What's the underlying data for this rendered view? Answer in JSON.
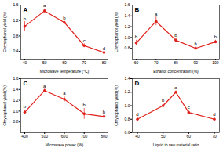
{
  "chart_data": [
    {
      "type": "line",
      "title": "A",
      "xlabel": "Microwave temperature (°C)",
      "ylabel": "Chrysophanol yield (%)",
      "x": [
        40,
        50,
        60,
        70,
        80
      ],
      "values": [
        1.05,
        1.45,
        1.15,
        0.55,
        0.37
      ],
      "errors": [
        0.12,
        0.05,
        0.03,
        0.05,
        0.03
      ],
      "annotations": [
        "b",
        "a",
        "b",
        "c",
        "d"
      ],
      "xlim": [
        38,
        82
      ],
      "xticks": [
        40,
        50,
        60,
        70,
        80
      ],
      "ylim": [
        0.2,
        1.6
      ],
      "yticks": [
        0.4,
        0.8,
        1.2,
        1.6
      ],
      "color": "#e0201b",
      "marker": "circle"
    },
    {
      "type": "line",
      "title": "B",
      "xlabel": "Ethanol concentration (%)",
      "ylabel": "Chrysophanol yield (%)",
      "x": [
        60,
        70,
        80,
        90,
        100
      ],
      "values": [
        0.9,
        1.3,
        0.95,
        0.8,
        0.92
      ],
      "errors": [
        0.05,
        0.08,
        0.04,
        0.03,
        0.03
      ],
      "annotations": [
        "b",
        "a",
        "b",
        "b",
        "b"
      ],
      "xlim": [
        58,
        102
      ],
      "xticks": [
        60,
        70,
        80,
        90,
        100
      ],
      "ylim": [
        0.6,
        1.6
      ],
      "yticks": [
        0.8,
        {
          "value": 1,
          "label": "1.0"
        },
        1.2,
        1.4,
        1.6
      ],
      "color": "#e0201b",
      "marker": "circle"
    },
    {
      "type": "line",
      "title": "C",
      "xlabel": "Microwave power (W)",
      "ylabel": "Chrysophanol yield (%)",
      "x": [
        400,
        500,
        600,
        700,
        800
      ],
      "values": [
        0.98,
        1.38,
        1.22,
        0.95,
        0.9
      ],
      "errors": [
        0.04,
        0.03,
        0.05,
        0.1,
        0.02
      ],
      "annotations": [
        "b",
        "a",
        "a",
        "b",
        "b"
      ],
      "xlim": [
        380,
        820
      ],
      "xticks": [
        400,
        500,
        600,
        700,
        800
      ],
      "ylim": [
        0.6,
        1.6
      ],
      "yticks": [
        0.8,
        {
          "value": 1,
          "label": "1.0"
        },
        1.2,
        1.4,
        1.6
      ],
      "color": "#e0201b",
      "marker": "circle"
    },
    {
      "type": "line",
      "title": "D",
      "xlabel": "Liquid to raw material ratio",
      "ylabel": "Chrysophanol yield (%)",
      "x": [
        40,
        50,
        55,
        60,
        70
      ],
      "values": [
        0.8,
        1.0,
        1.2,
        0.9,
        0.8
      ],
      "errors": [
        0.03,
        0.03,
        0.02,
        0.03,
        0.03
      ],
      "annotations": [
        "d",
        "b",
        "a",
        "c",
        "d"
      ],
      "xlim": [
        38,
        72
      ],
      "xticks": [
        40,
        50,
        60,
        70
      ],
      "ylim": [
        0.6,
        1.4
      ],
      "yticks": [
        0.6,
        0.8,
        {
          "value": 1,
          "label": "1.0"
        },
        1.2,
        1.4
      ],
      "color": "#e0201b",
      "marker": "circle"
    }
  ]
}
